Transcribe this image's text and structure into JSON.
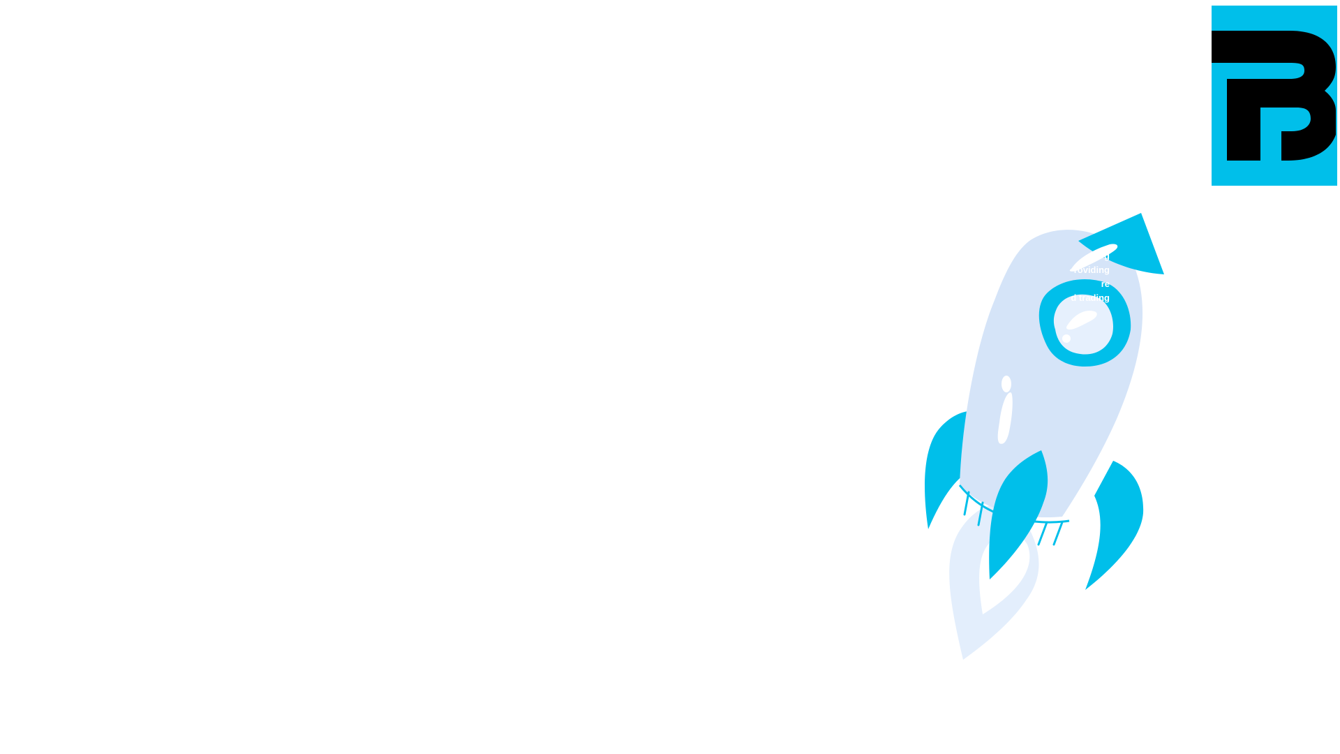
{
  "logo": {
    "icon": "brand-logo-icon",
    "background": "#00BFEA",
    "foreground": "#000000"
  },
  "illustration": {
    "icon": "rocket-icon",
    "colors": {
      "accent": "#00BFEA",
      "body": "#D5E4F8",
      "flame": "#E3EEFC",
      "highlight": "#FFFFFF"
    },
    "text_lines": [
      "g",
      "roviding",
      "re",
      "d trading"
    ]
  }
}
